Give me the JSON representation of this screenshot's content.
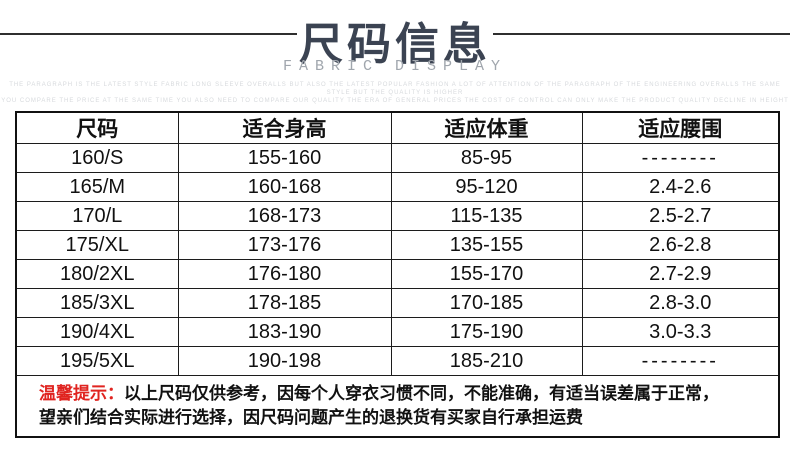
{
  "header": {
    "title": "尺码信息",
    "subtitle": "FABRIC DISPLAY"
  },
  "watermark": {
    "line1": "THE PARAGRAPH IS THE LATEST STYLE FABRIC LONG SLEEVE OVERALLS BUT ALSO THE LATEST POPULAR FASHION A LOT OF ATTENTION OF THE PARAGRAPH OF THE ENGINEERING OVERALLS THE SAME STYLE BUT THE QUALITY IS HIGHER",
    "line2": "YOU COMPARE THE PRICE AT THE SAME TIME YOU ALSO NEED TO COMPARE OUR QUALITY THE ERA OF GENERAL PRICES THE COST OF CONTROL CAN ONLY MAKE THE PRODUCT QUALITY DECLINE IN HEIGHT"
  },
  "table": {
    "columns": [
      "尺码",
      "适合身高",
      "适应体重",
      "适应腰围"
    ],
    "rows": [
      [
        "160/S",
        "155-160",
        "85-95",
        "--------"
      ],
      [
        "165/M",
        "160-168",
        "95-120",
        "2.4-2.6"
      ],
      [
        "170/L",
        "168-173",
        "115-135",
        "2.5-2.7"
      ],
      [
        "175/XL",
        "173-176",
        "135-155",
        "2.6-2.8"
      ],
      [
        "180/2XL",
        "176-180",
        "155-170",
        "2.7-2.9"
      ],
      [
        "185/3XL",
        "178-185",
        "170-185",
        "2.8-3.0"
      ],
      [
        "190/4XL",
        "183-190",
        "175-190",
        "3.0-3.3"
      ],
      [
        "195/5XL",
        "190-198",
        "185-210",
        "--------"
      ]
    ]
  },
  "notice": {
    "label": "温馨提示：",
    "line1": "以上尺码仅供参考，因每个人穿衣习惯不同，不能准确，有适当误差属于正常，",
    "line2": "望亲们结合实际进行选择，因尺码问题产生的退换货有买家自行承担运费"
  },
  "colors": {
    "title": "#3b4352",
    "notice_red": "#e02420",
    "border": "#111111"
  }
}
